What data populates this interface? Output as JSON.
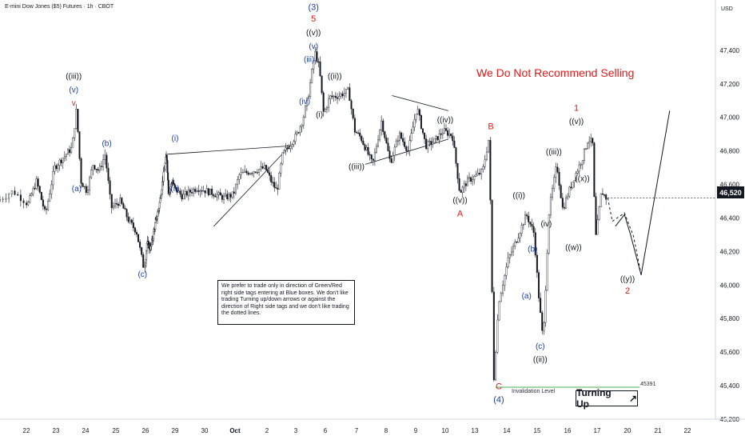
{
  "header": {
    "symbol": "E-mini Dow Jones ($5) Futures · 1h · CBOT",
    "currency": "USD"
  },
  "headline": "We Do Not Recommend Selling",
  "note": "We prefer to trade only in direction of Green/Red right side tags entering at Blue boxes. We don't like trading Turning up/down arrows or against the direction of Right side tags and we don't like trading the dotted lines.",
  "turning_badge": {
    "label": "Turning Up",
    "arrow": "↗"
  },
  "invalidation": {
    "label": "Invalidation Level",
    "price_text": "45391",
    "value": 45391
  },
  "last_price": {
    "text": "46,520",
    "value": 46520
  },
  "colors": {
    "up": "#131722",
    "down": "#131722",
    "red_label": "#e01919",
    "blue_label": "#1a3ea8",
    "black_label": "#131722",
    "invalidation": "#4caf50"
  },
  "chart_data": {
    "type": "line",
    "title": "E-mini Dow Jones ($5) Futures · 1h · CBOT",
    "xlabel": "",
    "ylabel": "",
    "ylim": [
      45200,
      47700
    ],
    "xlim": [
      21.5,
      23.2
    ],
    "x_ticks": [
      {
        "x": 22,
        "label": "22"
      },
      {
        "x": 23,
        "label": "23"
      },
      {
        "x": 24,
        "label": "24"
      },
      {
        "x": 25,
        "label": "25"
      },
      {
        "x": 26,
        "label": "26"
      },
      {
        "x": 29,
        "label": "29"
      },
      {
        "x": 30,
        "label": "30"
      },
      {
        "x": 31,
        "label": "Oct"
      },
      {
        "x": 32,
        "label": "2"
      },
      {
        "x": 33,
        "label": "3"
      },
      {
        "x": 34,
        "label": "6"
      },
      {
        "x": 35,
        "label": "7"
      },
      {
        "x": 36,
        "label": "8"
      },
      {
        "x": 37,
        "label": "9"
      },
      {
        "x": 38,
        "label": "10"
      },
      {
        "x": 39,
        "label": "13"
      },
      {
        "x": 40,
        "label": "14"
      },
      {
        "x": 41,
        "label": "15"
      },
      {
        "x": 42,
        "label": "16"
      },
      {
        "x": 43,
        "label": "17"
      },
      {
        "x": 44,
        "label": "20"
      },
      {
        "x": 45,
        "label": "21"
      },
      {
        "x": 46,
        "label": "22"
      }
    ],
    "y_ticks": [
      {
        "y": 47400,
        "label": "47,400"
      },
      {
        "y": 47200,
        "label": "47,200"
      },
      {
        "y": 47000,
        "label": "47,000"
      },
      {
        "y": 46800,
        "label": "46,800"
      },
      {
        "y": 46600,
        "label": "46,600"
      },
      {
        "y": 46400,
        "label": "46,400"
      },
      {
        "y": 46200,
        "label": "46,200"
      },
      {
        "y": 46000,
        "label": "46,000"
      },
      {
        "y": 45800,
        "label": "45,800"
      },
      {
        "y": 45600,
        "label": "45,600"
      },
      {
        "y": 45400,
        "label": "45,400"
      },
      {
        "y": 45200,
        "label": "45,200"
      }
    ],
    "price_path": [
      [
        21.5,
        46500
      ],
      [
        21.8,
        46560
      ],
      [
        22.1,
        46480
      ],
      [
        22.4,
        46620
      ],
      [
        22.7,
        46420
      ],
      [
        23.0,
        46700
      ],
      [
        23.3,
        46760
      ],
      [
        23.6,
        46820
      ],
      [
        23.75,
        47050
      ],
      [
        23.9,
        46620
      ],
      [
        24.1,
        46560
      ],
      [
        24.3,
        46720
      ],
      [
        24.5,
        46680
      ],
      [
        24.7,
        46780
      ],
      [
        24.9,
        46460
      ],
      [
        25.2,
        46500
      ],
      [
        25.5,
        46380
      ],
      [
        25.75,
        46320
      ],
      [
        26.0,
        46100
      ],
      [
        26.2,
        46250
      ],
      [
        26.6,
        46220
      ],
      [
        27.0,
        46350
      ],
      [
        27.4,
        46450
      ],
      [
        27.8,
        46620
      ],
      [
        28.2,
        46780
      ],
      [
        28.4,
        46550
      ],
      [
        28.8,
        46620
      ],
      [
        29.3,
        46530
      ],
      [
        29.8,
        46580
      ],
      [
        30.3,
        46550
      ],
      [
        30.7,
        46520
      ],
      [
        31.0,
        46540
      ],
      [
        31.2,
        46660
      ],
      [
        31.6,
        46680
      ],
      [
        32.0,
        46700
      ],
      [
        32.2,
        46620
      ],
      [
        32.4,
        46560
      ],
      [
        32.6,
        46780
      ],
      [
        32.9,
        46850
      ],
      [
        33.1,
        46900
      ],
      [
        33.3,
        46990
      ],
      [
        33.5,
        47150
      ],
      [
        33.7,
        47390
      ],
      [
        33.85,
        47300
      ],
      [
        34.0,
        47020
      ],
      [
        34.2,
        47120
      ],
      [
        34.5,
        47130
      ],
      [
        34.8,
        47160
      ],
      [
        35.0,
        46920
      ],
      [
        35.2,
        46880
      ],
      [
        35.6,
        46720
      ],
      [
        35.9,
        46980
      ],
      [
        36.2,
        46730
      ],
      [
        36.5,
        46900
      ],
      [
        36.8,
        46800
      ],
      [
        37.1,
        47060
      ],
      [
        37.4,
        46830
      ],
      [
        37.7,
        46860
      ],
      [
        38.0,
        46920
      ],
      [
        38.3,
        46890
      ],
      [
        38.55,
        46550
      ],
      [
        38.8,
        46620
      ],
      [
        39.1,
        46650
      ],
      [
        39.3,
        46680
      ],
      [
        39.5,
        46880
      ],
      [
        39.65,
        45440
      ],
      [
        39.8,
        45900
      ],
      [
        40.1,
        46150
      ],
      [
        40.4,
        46280
      ],
      [
        40.7,
        46420
      ],
      [
        40.95,
        46310
      ],
      [
        41.1,
        45950
      ],
      [
        41.25,
        45660
      ],
      [
        41.45,
        46450
      ],
      [
        41.7,
        46720
      ],
      [
        41.9,
        46450
      ],
      [
        42.1,
        46560
      ],
      [
        42.3,
        46650
      ],
      [
        42.55,
        46750
      ],
      [
        42.75,
        46870
      ],
      [
        42.9,
        46850
      ],
      [
        43.0,
        46270
      ],
      [
        43.2,
        46560
      ],
      [
        43.35,
        46520
      ]
    ],
    "projection": {
      "dotted": [
        [
          43.35,
          46520
        ],
        [
          43.5,
          46380
        ],
        [
          43.9,
          46430
        ],
        [
          44.2,
          46290
        ],
        [
          44.45,
          46060
        ]
      ],
      "solid": [
        [
          43.6,
          46350
        ],
        [
          43.9,
          46420
        ],
        [
          44.1,
          46300
        ],
        [
          44.45,
          46060
        ],
        [
          45.4,
          47040
        ]
      ]
    },
    "channel_lines": [
      [
        [
          28.2,
          46780
        ],
        [
          32.8,
          46830
        ]
      ],
      [
        [
          30.3,
          46350
        ],
        [
          32.8,
          46830
        ]
      ],
      [
        [
          36.2,
          47130
        ],
        [
          38.1,
          47040
        ]
      ],
      [
        [
          35.3,
          46720
        ],
        [
          38.1,
          46870
        ]
      ]
    ],
    "wave_labels": [
      {
        "text": "((iii))",
        "x": 23.6,
        "y": 47230,
        "color": "black"
      },
      {
        "text": "(v)",
        "x": 23.6,
        "y": 47150,
        "color": "blue"
      },
      {
        "text": "v",
        "x": 23.6,
        "y": 47070,
        "color": "red"
      },
      {
        "text": "(a)",
        "x": 23.7,
        "y": 46560,
        "color": "blue"
      },
      {
        "text": "(b)",
        "x": 24.7,
        "y": 46830,
        "color": "blue"
      },
      {
        "text": "(c)",
        "x": 25.9,
        "y": 46050,
        "color": "blue"
      },
      {
        "text": "(i)",
        "x": 29.0,
        "y": 46860,
        "color": "blue"
      },
      {
        "text": "(ii)",
        "x": 29.0,
        "y": 46560,
        "color": "blue"
      },
      {
        "text": "(3)",
        "x": 33.6,
        "y": 47640,
        "color": "blue"
      },
      {
        "text": "5",
        "x": 33.6,
        "y": 47570,
        "color": "red"
      },
      {
        "text": "((v))",
        "x": 33.6,
        "y": 47490,
        "color": "black"
      },
      {
        "text": "(v)",
        "x": 33.6,
        "y": 47410,
        "color": "blue"
      },
      {
        "text": "(iii)",
        "x": 33.45,
        "y": 47330,
        "color": "blue"
      },
      {
        "text": "((ii))",
        "x": 34.3,
        "y": 47230,
        "color": "black"
      },
      {
        "text": "(iv)",
        "x": 33.3,
        "y": 47080,
        "color": "blue"
      },
      {
        "text": "(i)",
        "x": 33.8,
        "y": 47000,
        "color": "black"
      },
      {
        "text": "((iii))",
        "x": 35.0,
        "y": 46690,
        "color": "black"
      },
      {
        "text": "((iv))",
        "x": 38.0,
        "y": 46970,
        "color": "black"
      },
      {
        "text": "B",
        "x": 39.5,
        "y": 46930,
        "color": "red"
      },
      {
        "text": "((v))",
        "x": 38.5,
        "y": 46490,
        "color": "black"
      },
      {
        "text": "A",
        "x": 38.5,
        "y": 46410,
        "color": "red"
      },
      {
        "text": "((i))",
        "x": 40.4,
        "y": 46520,
        "color": "black"
      },
      {
        "text": "1",
        "x": 42.3,
        "y": 47040,
        "color": "red"
      },
      {
        "text": "((v))",
        "x": 42.3,
        "y": 46960,
        "color": "black"
      },
      {
        "text": "((iii))",
        "x": 41.55,
        "y": 46780,
        "color": "black"
      },
      {
        "text": "((x))",
        "x": 42.5,
        "y": 46620,
        "color": "black"
      },
      {
        "text": "(iv)",
        "x": 41.3,
        "y": 46350,
        "color": "black"
      },
      {
        "text": "(b)",
        "x": 40.85,
        "y": 46200,
        "color": "blue"
      },
      {
        "text": "((w))",
        "x": 42.2,
        "y": 46210,
        "color": "black"
      },
      {
        "text": "(a)",
        "x": 40.65,
        "y": 45920,
        "color": "blue"
      },
      {
        "text": "((y))",
        "x": 44.0,
        "y": 46020,
        "color": "black"
      },
      {
        "text": "2",
        "x": 44.0,
        "y": 45950,
        "color": "red"
      },
      {
        "text": "(c)",
        "x": 41.1,
        "y": 45620,
        "color": "blue"
      },
      {
        "text": "((ii))",
        "x": 41.1,
        "y": 45540,
        "color": "black"
      },
      {
        "text": "C",
        "x": 39.75,
        "y": 45380,
        "color": "red"
      },
      {
        "text": "(4)",
        "x": 39.75,
        "y": 45300,
        "color": "blue"
      }
    ]
  }
}
